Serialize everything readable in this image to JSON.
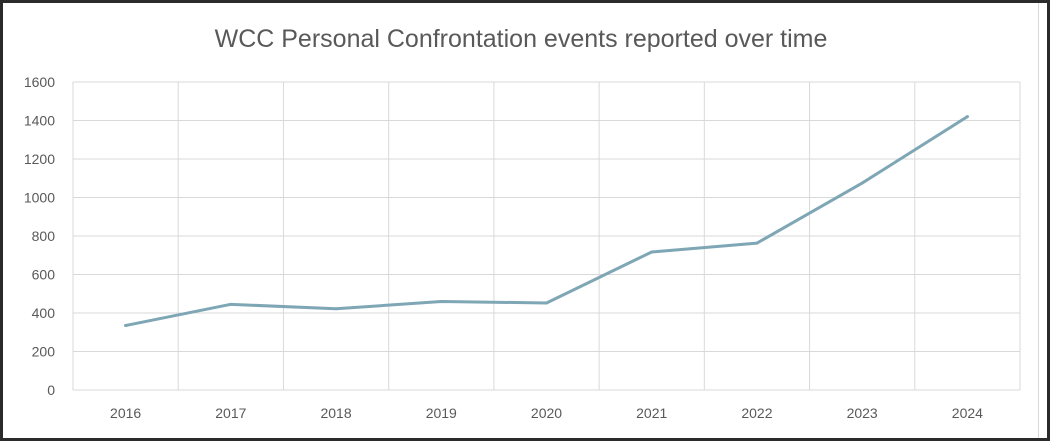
{
  "chart_data": {
    "type": "line",
    "title": "WCC Personal Confrontation events reported over time",
    "xlabel": "",
    "ylabel": "",
    "categories": [
      "2016",
      "2017",
      "2018",
      "2019",
      "2020",
      "2021",
      "2022",
      "2023",
      "2024"
    ],
    "series": [
      {
        "name": "Personal Confrontation events",
        "values": [
          335,
          445,
          422,
          460,
          452,
          717,
          763,
          1075,
          1420
        ],
        "color": "#7ea6b5"
      }
    ],
    "ylim": [
      0,
      1600
    ],
    "yticks": [
      "0",
      "200",
      "400",
      "600",
      "800",
      "1000",
      "1200",
      "1400",
      "1600"
    ],
    "grid": true,
    "legend": "none"
  }
}
